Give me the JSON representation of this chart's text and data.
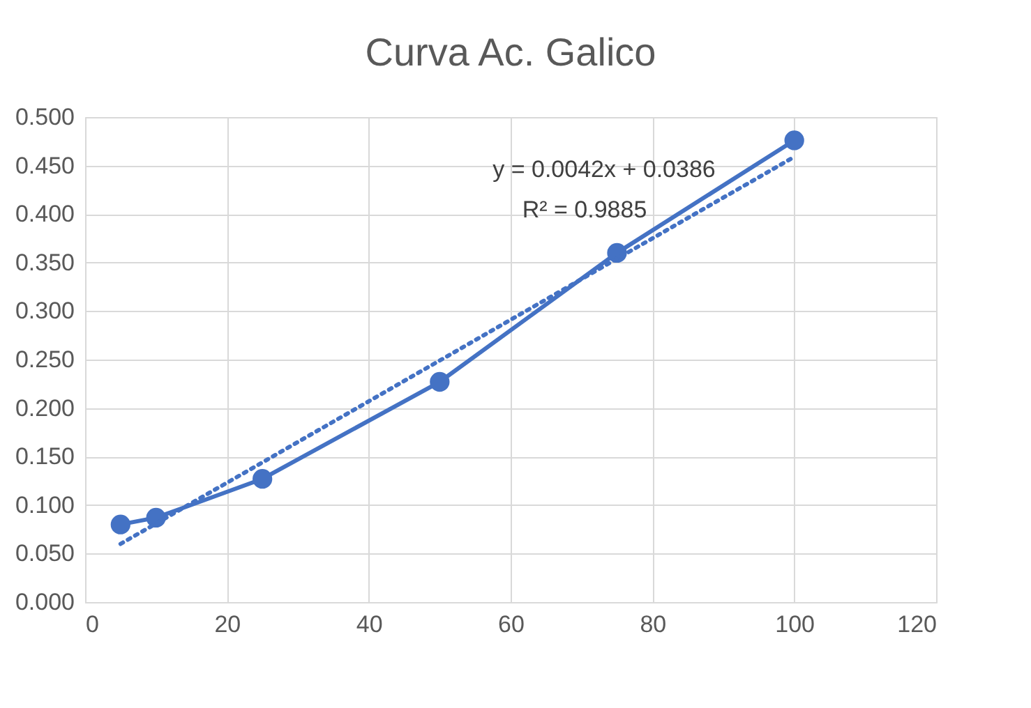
{
  "chart_data": {
    "type": "line",
    "title": "Curva Ac. Galico",
    "series": [
      {
        "x": [
          5,
          10,
          25,
          50,
          75,
          100
        ],
        "values": [
          0.08,
          0.087,
          0.127,
          0.227,
          0.36,
          0.476
        ],
        "color": "#4472c4",
        "marker": "circle",
        "line_style": "solid"
      },
      {
        "type": "line",
        "x": [
          5,
          100
        ],
        "values": [
          0.06,
          0.459
        ],
        "color": "#4472c4",
        "marker": "none",
        "line_style": "dotted"
      }
    ],
    "xlim": [
      0,
      120
    ],
    "xticks": [
      0,
      20,
      40,
      60,
      80,
      100,
      120
    ],
    "ylim": [
      0,
      0.5
    ],
    "yticks": [
      {
        "value": 0,
        "label": "0.000"
      },
      {
        "value": 0.05,
        "label": "0.050"
      },
      {
        "value": 0.1,
        "label": "0.100"
      },
      {
        "value": 0.15,
        "label": "0.150"
      },
      {
        "value": 0.2,
        "label": "0.200"
      },
      {
        "value": 0.25,
        "label": "0.250"
      },
      {
        "value": 0.3,
        "label": "0.300"
      },
      {
        "value": 0.35,
        "label": "0.350"
      },
      {
        "value": 0.4,
        "label": "0.400"
      },
      {
        "value": 0.45,
        "label": "0.450"
      },
      {
        "value": 0.5,
        "label": "0.500"
      }
    ],
    "annotations": [
      "y = 0.0042x + 0.0386",
      "R² = 0.9885"
    ],
    "grid": true
  }
}
